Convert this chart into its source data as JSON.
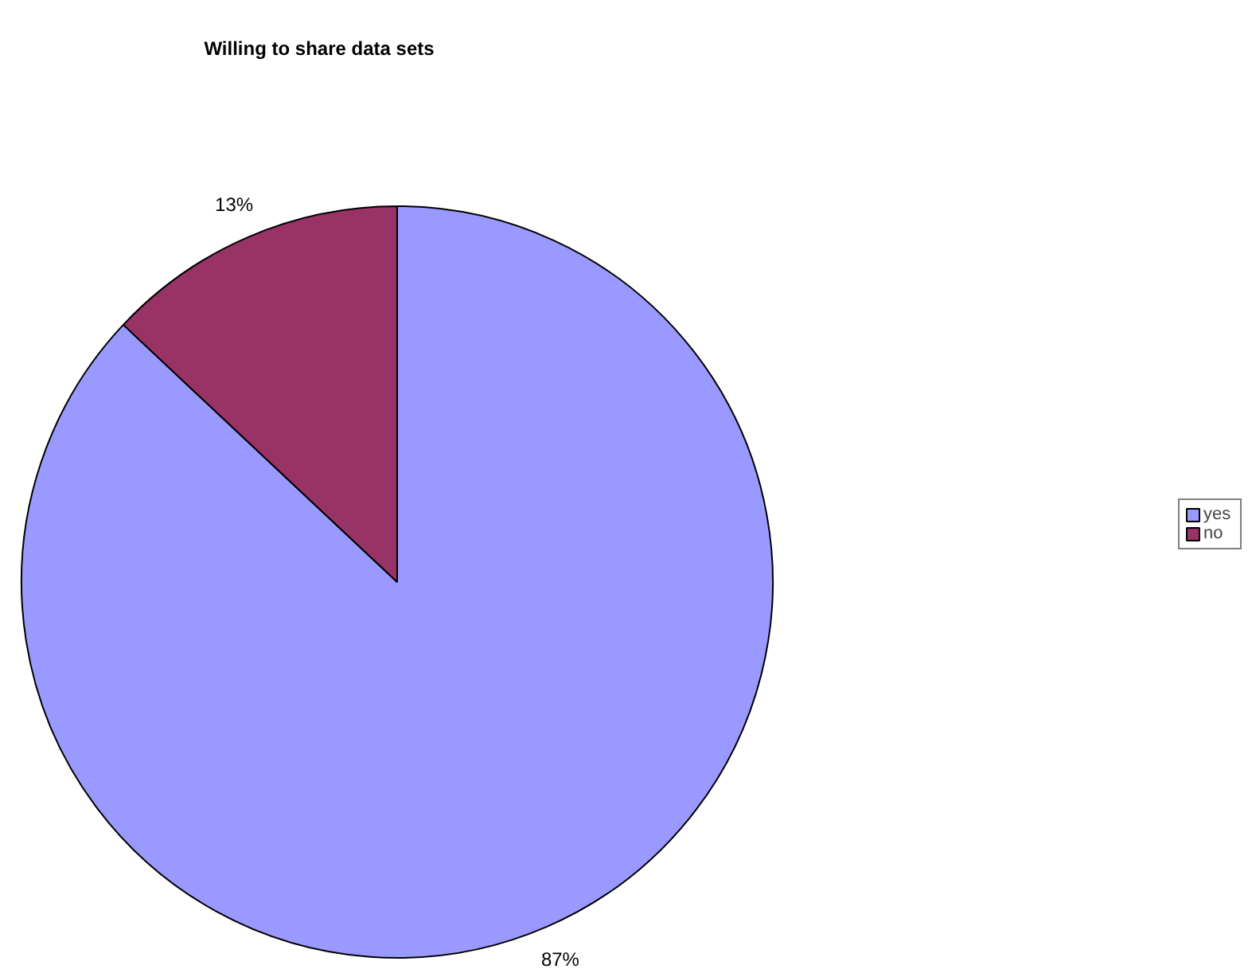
{
  "chart_data": {
    "type": "pie",
    "title": "Willing to share data sets",
    "categories": [
      "yes",
      "no"
    ],
    "values": [
      87,
      13
    ],
    "colors": [
      "#9999ff",
      "#993366"
    ],
    "value_labels": [
      "87%",
      "13%"
    ],
    "legend": "right"
  }
}
